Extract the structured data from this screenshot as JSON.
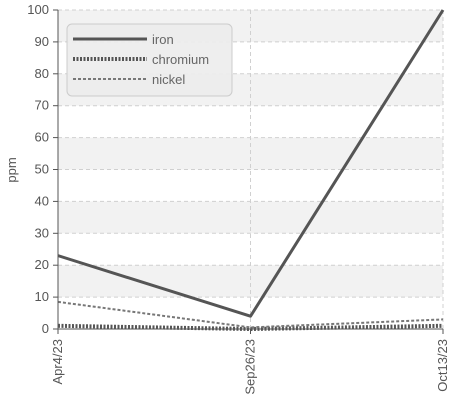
{
  "chart_data": {
    "type": "line",
    "categories": [
      "Apr4/23",
      "Sep26/23",
      "Oct13/23"
    ],
    "ylabel": "ppm",
    "ylim": [
      0,
      100
    ],
    "yticks": [
      0,
      10,
      20,
      30,
      40,
      50,
      60,
      70,
      80,
      90,
      100
    ],
    "grid": true,
    "legend_position": "top-left",
    "series": [
      {
        "name": "iron",
        "values": [
          23,
          4,
          100
        ],
        "color": "#555555",
        "style": "solid"
      },
      {
        "name": "chromium",
        "values": [
          1,
          0,
          1
        ],
        "color": "#555555",
        "style": "dotted"
      },
      {
        "name": "nickel",
        "values": [
          8.5,
          0.5,
          3
        ],
        "color": "#777777",
        "style": "dashed"
      }
    ]
  }
}
